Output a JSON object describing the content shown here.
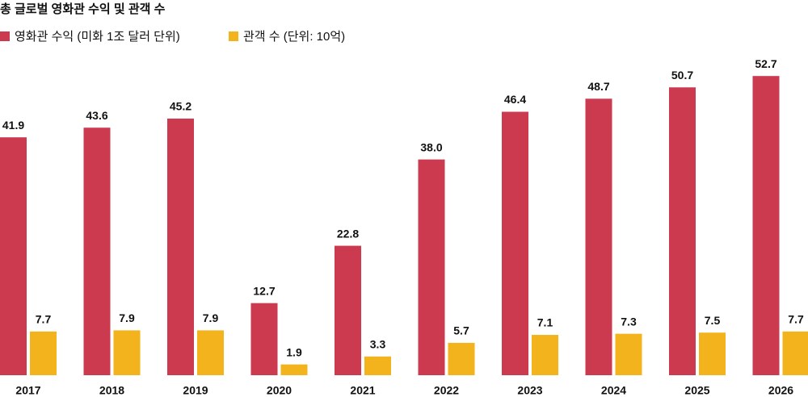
{
  "chart_data": {
    "type": "bar",
    "title": "총 글로벌 영화관 수익 및 관객 수",
    "categories": [
      "2017",
      "2018",
      "2019",
      "2020",
      "2021",
      "2022",
      "2023",
      "2024",
      "2025",
      "2026"
    ],
    "series": [
      {
        "name": "영화관 수익 (미화 1조 달러 단위)",
        "color": "#cc3a50",
        "values": [
          41.9,
          43.6,
          45.2,
          12.7,
          22.8,
          38.0,
          46.4,
          48.7,
          50.7,
          52.7
        ],
        "value_labels": [
          "41.9",
          "43.6",
          "45.2",
          "12.7",
          "22.8",
          "38.0",
          "46.4",
          "48.7",
          "50.7",
          "52.7"
        ]
      },
      {
        "name": "관객 수 (단위: 10억)",
        "color": "#f2b31c",
        "values": [
          7.7,
          7.9,
          7.9,
          1.9,
          3.3,
          5.7,
          7.1,
          7.3,
          7.5,
          7.7
        ]
      }
    ],
    "ylim": [
      0,
      55
    ]
  }
}
